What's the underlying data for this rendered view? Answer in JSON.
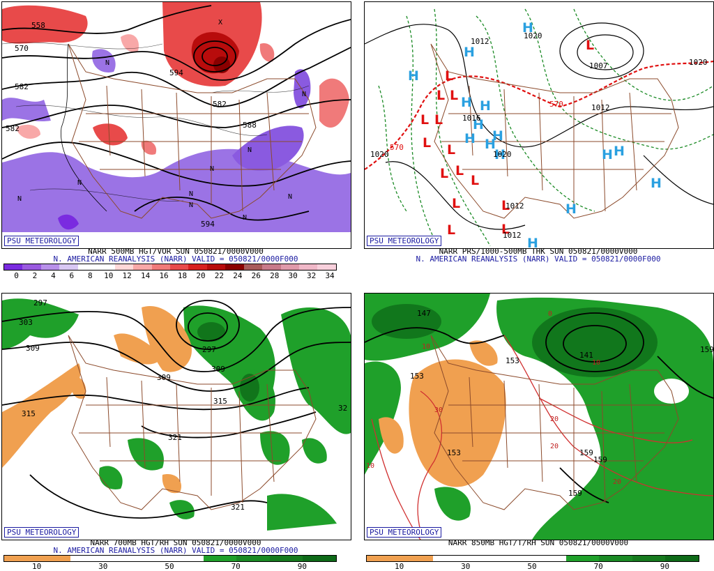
{
  "badge": "PSU METEOROLOGY",
  "colors": {
    "frame": "#000000",
    "state_lines": "#8b4a2b",
    "badge_text": "#1a1aa0",
    "low_marker": "#e01010",
    "high_marker": "#2aa0e0",
    "moist": "#1fa02a",
    "dry": "#f0a050"
  },
  "panels": [
    {
      "id": "p500",
      "line1": "NARR 500MB HGT/VOR SUN 050821/0000V000",
      "line2": "N. AMERICAN REANALYSIS (NARR) VALID = 050821/0000F000",
      "contour_labels": [
        "558",
        "570",
        "582",
        "582",
        "582",
        "588",
        "594",
        "594"
      ],
      "vort_markers": [
        "N",
        "N",
        "N",
        "N",
        "N",
        "N",
        "N",
        "N",
        "N",
        "N",
        "X"
      ],
      "legend_colors": [
        "#7a2be0",
        "#9a5ae0",
        "#b890ea",
        "#d8c8f4",
        "#ffffff",
        "#ffffff",
        "#ffd8d8",
        "#f8a8a8",
        "#f07a7a",
        "#e84a4a",
        "#d82020",
        "#b80c0c",
        "#8a0000",
        "#a85a5a",
        "#c87a8a",
        "#e09aaa",
        "#f0b8c8",
        "#f8d0dc"
      ],
      "legend_ticks": [
        "0",
        "2",
        "4",
        "6",
        "8",
        "10",
        "12",
        "14",
        "16",
        "18",
        "20",
        "22",
        "24",
        "26",
        "28",
        "30",
        "32",
        "34"
      ]
    },
    {
      "id": "pthk",
      "line1": "NARR PRS/1000-500MB THK SUN 050821/0000V000",
      "line2": "N. AMERICAN REANALYSIS (NARR) VALID = 050821/0000F000",
      "contour_labels": [
        "1012",
        "1020",
        "1007",
        "1020",
        "1012",
        "1020",
        "1016",
        "1012",
        "1012",
        "570",
        "570",
        "1020"
      ],
      "lows": [
        "L",
        "L",
        "L",
        "L",
        "L",
        "L",
        "L",
        "L",
        "L",
        "L",
        "L",
        "L",
        "L",
        "L",
        "L"
      ],
      "highs": [
        "H",
        "H",
        "H",
        "H",
        "H",
        "H",
        "H",
        "H",
        "H",
        "H",
        "H",
        "H",
        "H",
        "H",
        "H",
        "H"
      ]
    },
    {
      "id": "p700",
      "line1": "NARR 700MB HGT/RH SUN 050821/0000V000",
      "line2": "N. AMERICAN REANALYSIS (NARR) VALID = 050821/0000F000",
      "contour_labels": [
        "297",
        "303",
        "309",
        "297",
        "309",
        "309",
        "315",
        "315",
        "321",
        "321",
        "32"
      ],
      "legend_colors": [
        "#f0a050",
        "#f0a050",
        "#ffffff",
        "#ffffff",
        "#ffffff",
        "#ffffff",
        "#1fa02a",
        "#1a8a24",
        "#167a1e",
        "#0e6a18"
      ],
      "legend_ticks": [
        "10",
        "30",
        "50",
        "70",
        "90"
      ]
    },
    {
      "id": "p850",
      "line1": "NARR 850MB HGT/T/RH SUN 050821/0000V000",
      "contour_labels": [
        "147",
        "153",
        "153",
        "141",
        "159",
        "153",
        "159",
        "159",
        "159"
      ],
      "temp_labels": [
        "10",
        "30",
        "0",
        "10",
        "20",
        "20",
        "20",
        "10"
      ],
      "legend_colors": [
        "#f0a050",
        "#f0a050",
        "#ffffff",
        "#ffffff",
        "#ffffff",
        "#ffffff",
        "#1fa02a",
        "#1a8a24",
        "#167a1e",
        "#0e6a18"
      ],
      "legend_ticks": [
        "10",
        "30",
        "50",
        "70",
        "90"
      ]
    }
  ]
}
